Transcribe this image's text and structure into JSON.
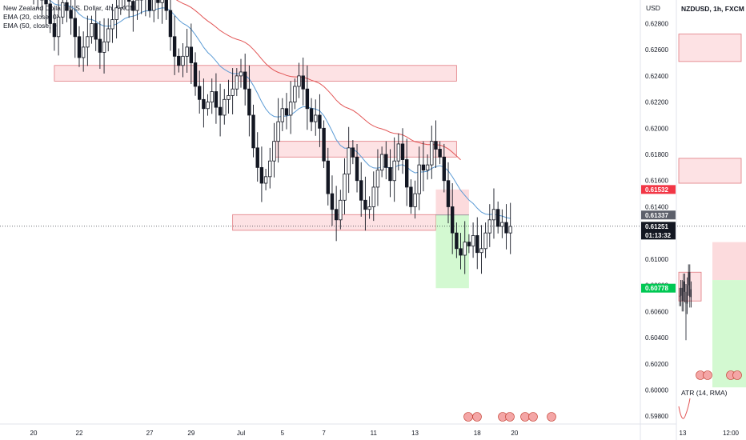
{
  "colors": {
    "up": "#131722",
    "down": "#131722",
    "ema20": "#5b9bd5",
    "ema50": "#e25656",
    "zone_fill": "#fde2e4",
    "zone_stroke": "#e07a80",
    "stop_fill": "#fbcfd2",
    "target_fill": "#c8f7c5",
    "price_label": "#131722",
    "stop_label": "#f23645",
    "target_label": "#22ab94"
  },
  "main": {
    "title_line": "New Zealand Dollar / U.S. Dollar, 4h, FXCM",
    "ema1_label": "EMA (20, close, 0)",
    "ema2_label": "EMA (50, close, 0)",
    "currency": "USD"
  },
  "side": {
    "title_line": "NZDUSD, 1h, FXCM",
    "atr_label": "ATR (14, RMA)",
    "x_ticks": [
      "13",
      "12:00"
    ]
  },
  "price_tags": {
    "stop": "0.61532",
    "entry": "0.61337",
    "last": "0.61251",
    "countdown": "01:13:32",
    "target": "0.60778"
  },
  "chart_data": [
    {
      "type": "candlestick",
      "title": "New Zealand Dollar / U.S. Dollar, 4h, FXCM",
      "ylabel": "USD",
      "ylim": [
        0.5974,
        0.6298
      ],
      "y_ticks": [
        0.628,
        0.626,
        0.624,
        0.622,
        0.62,
        0.618,
        0.616,
        0.614,
        0.612,
        0.61,
        0.608,
        0.606,
        0.604,
        0.602,
        0.6,
        0.598
      ],
      "y_tick_labels": [
        "0.62800",
        "0.62600",
        "0.62400",
        "0.62200",
        "0.62000",
        "0.61800",
        "0.61600",
        "0.61400",
        "0.61200",
        "0.61000",
        "0.60800",
        "0.60600",
        "0.60400",
        "0.60200",
        "0.60000",
        "0.59800"
      ],
      "x_ticks": [
        "20",
        "22",
        "27",
        "29",
        "Jul",
        "5",
        "7",
        "11",
        "13",
        "18",
        "20"
      ],
      "x_tick_index": [
        0,
        11,
        28,
        38,
        50,
        60,
        70,
        82,
        92,
        107,
        116
      ],
      "close": [
        0.63,
        0.6302,
        0.6298,
        0.6295,
        0.628,
        0.627,
        0.6285,
        0.6296,
        0.629,
        0.6284,
        0.627,
        0.6254,
        0.6262,
        0.627,
        0.628,
        0.6268,
        0.6258,
        0.6266,
        0.6276,
        0.6283,
        0.6292,
        0.63,
        0.6305,
        0.6297,
        0.629,
        0.6298,
        0.6306,
        0.63,
        0.629,
        0.63,
        0.6296,
        0.63,
        0.629,
        0.627,
        0.6255,
        0.6248,
        0.6255,
        0.6262,
        0.625,
        0.6232,
        0.6222,
        0.6215,
        0.622,
        0.6228,
        0.6216,
        0.621,
        0.6222,
        0.6225,
        0.623,
        0.624,
        0.6243,
        0.623,
        0.621,
        0.6185,
        0.617,
        0.6158,
        0.6163,
        0.6175,
        0.619,
        0.6205,
        0.6215,
        0.621,
        0.622,
        0.6232,
        0.624,
        0.623,
        0.6215,
        0.6205,
        0.621,
        0.62,
        0.6175,
        0.615,
        0.6138,
        0.613,
        0.6145,
        0.6165,
        0.6185,
        0.6178,
        0.616,
        0.6145,
        0.6138,
        0.614,
        0.6155,
        0.6168,
        0.618,
        0.617,
        0.616,
        0.6175,
        0.6188,
        0.6176,
        0.6155,
        0.614,
        0.615,
        0.6172,
        0.6168,
        0.6172,
        0.619,
        0.6184,
        0.6178,
        0.616,
        0.614,
        0.612,
        0.6108,
        0.6103,
        0.6113,
        0.611,
        0.6118,
        0.6105,
        0.6108,
        0.612,
        0.613,
        0.6138,
        0.6125,
        0.6128,
        0.612,
        0.6125
      ],
      "series": [
        {
          "name": "EMA (20, close, 0)"
        },
        {
          "name": "EMA (50, close, 0)"
        }
      ],
      "zones": [
        {
          "x0": 5,
          "x1": 102,
          "y0": 0.6236,
          "y1": 0.6248
        },
        {
          "x0": 58,
          "x1": 102,
          "y0": 0.6178,
          "y1": 0.619
        },
        {
          "x0": 48,
          "x1": 97,
          "y0": 0.6122,
          "y1": 0.6134
        }
      ],
      "position": {
        "x0": 97,
        "x1": 105,
        "entry": 0.61337,
        "stop": 0.61532,
        "target": 0.60778
      },
      "last_price": 0.61251
    },
    {
      "type": "candlestick",
      "title": "NZDUSD, 1h, FXCM",
      "ylim": [
        0.5974,
        0.6298
      ],
      "zones": [
        {
          "x0": 0,
          "x1": 10,
          "y0": 0.6251,
          "y1": 0.6272
        },
        {
          "x0": 0,
          "x1": 10,
          "y0": 0.6158,
          "y1": 0.6177
        }
      ],
      "close": [
        0.6072,
        0.6078,
        0.6068,
        0.6083,
        0.6075,
        0.6066,
        0.608,
        0.609,
        0.6071,
        0.6077
      ],
      "position": {
        "entry": 0.6084,
        "stop": 0.6113,
        "target": 0.6002
      }
    }
  ]
}
